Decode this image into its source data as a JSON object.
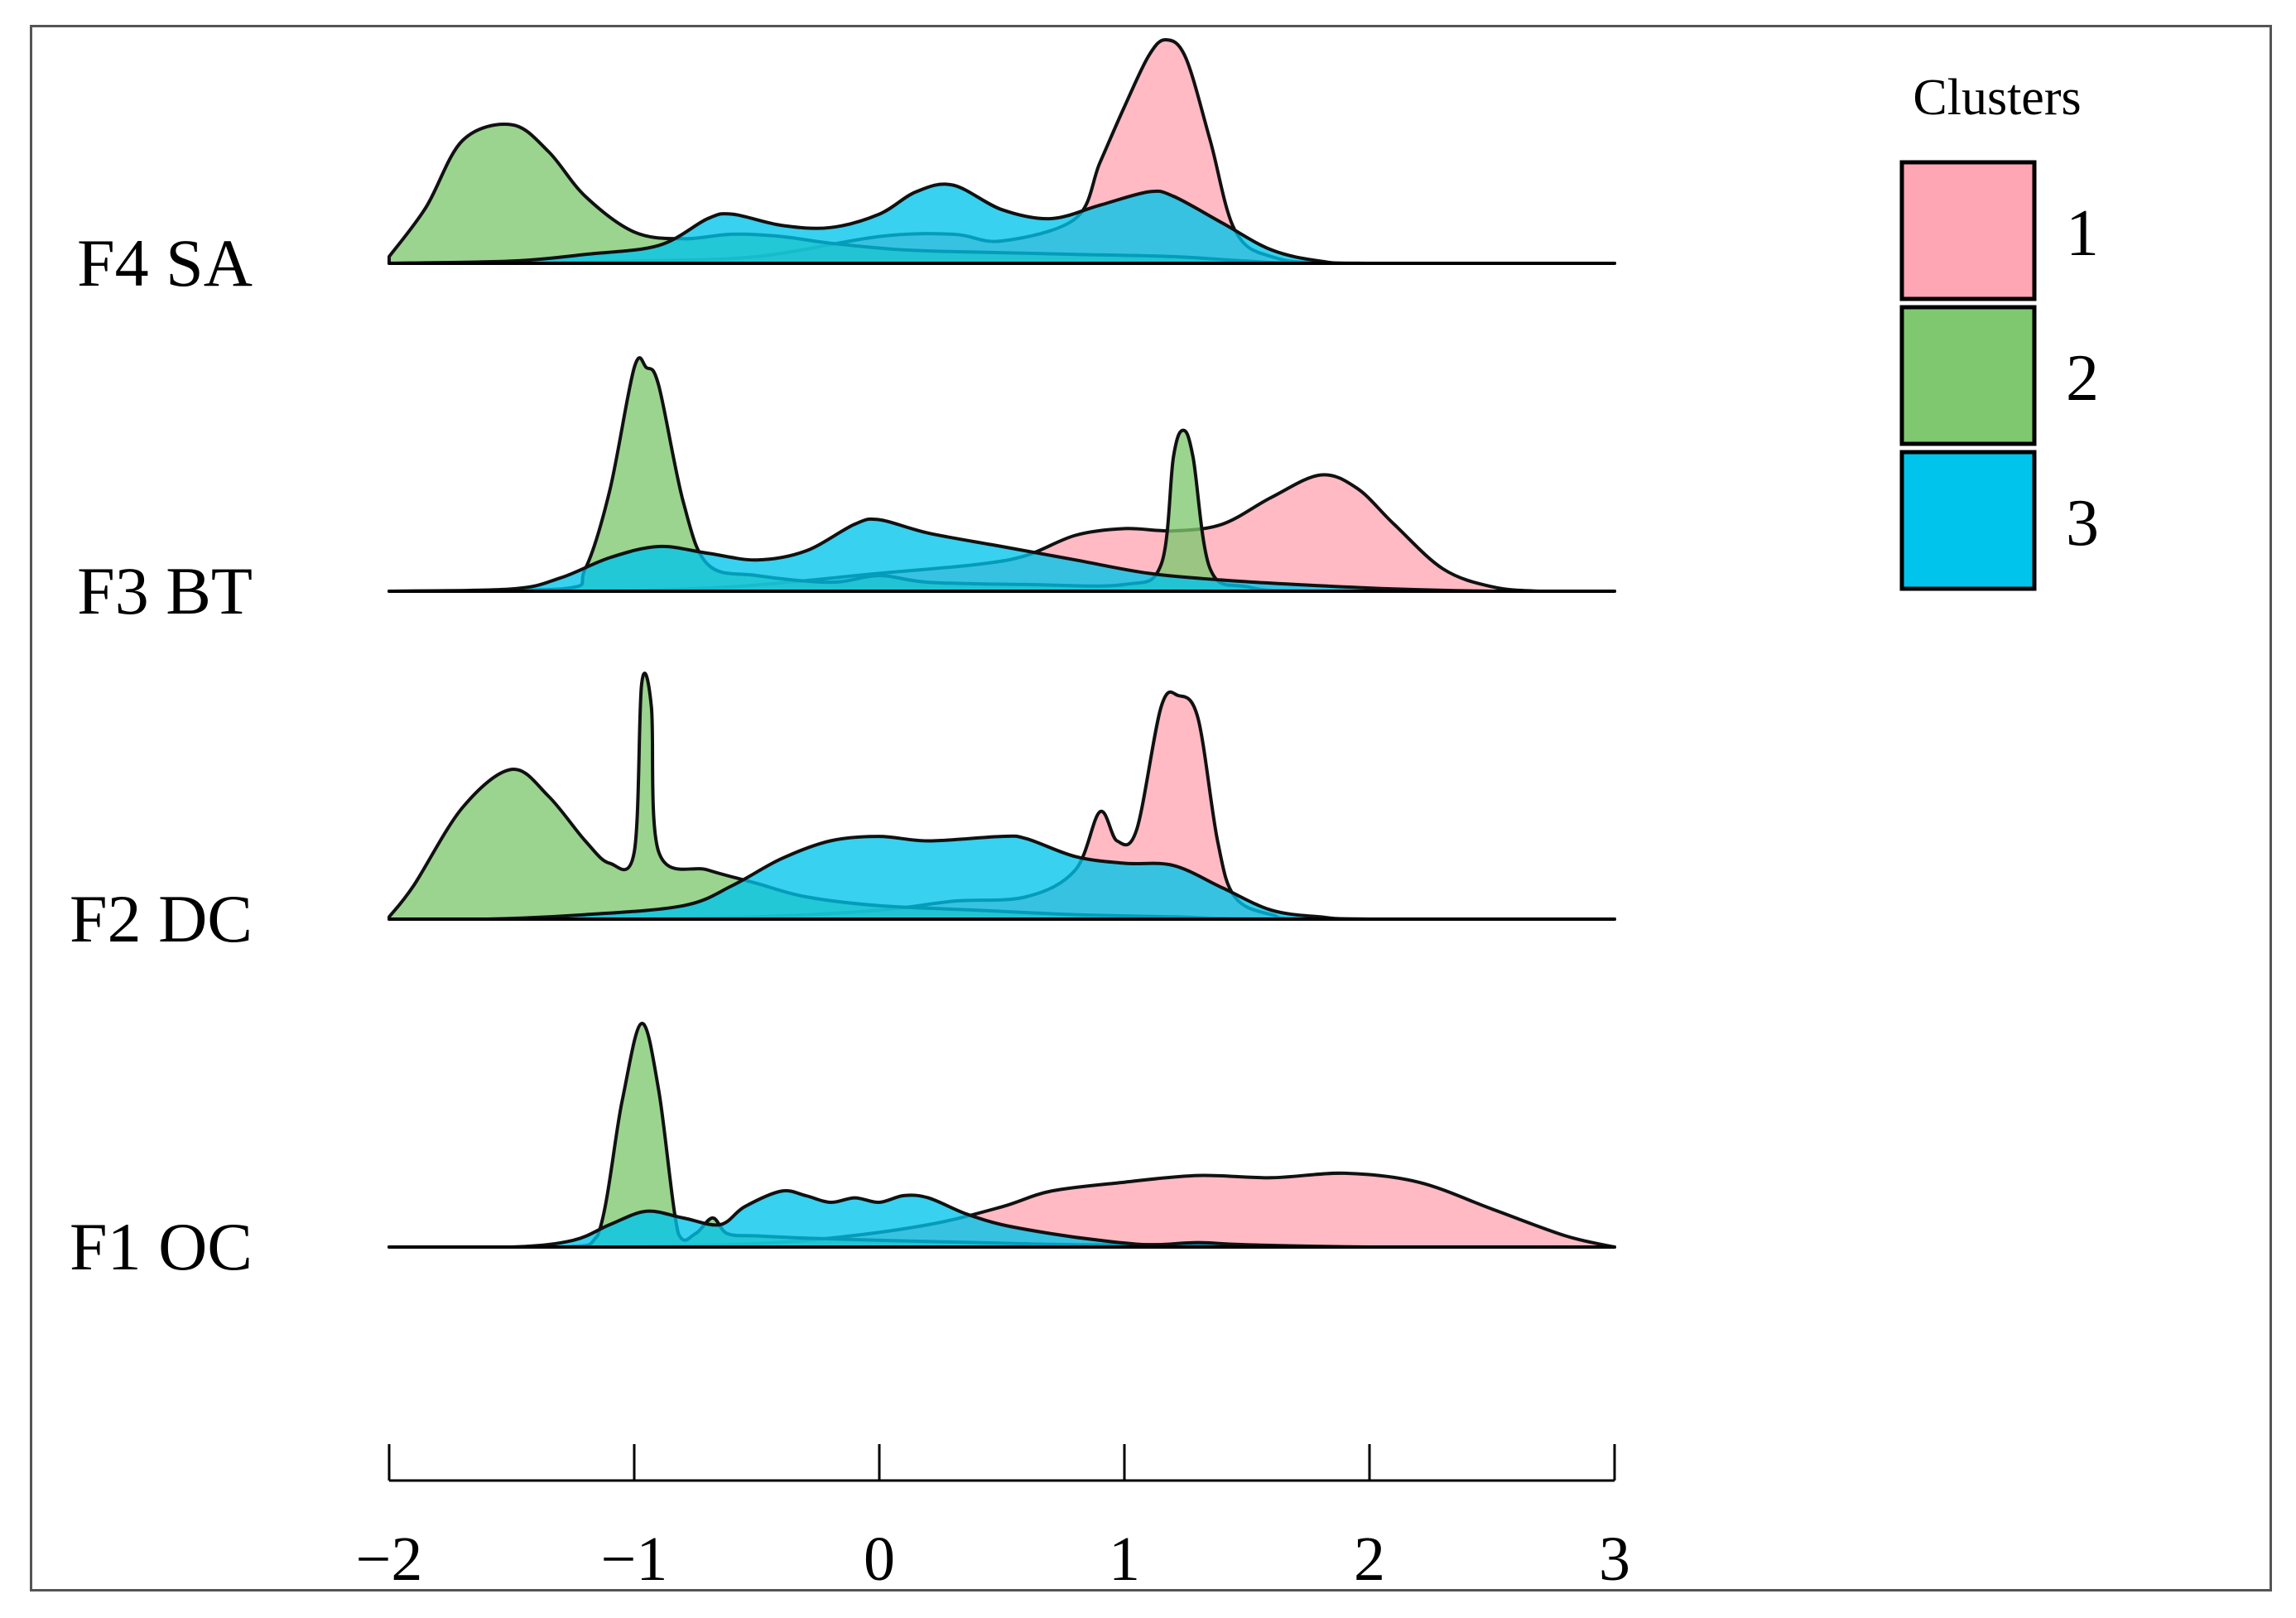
{
  "chart_data": {
    "type": "ridgeline",
    "title": "",
    "xlabel": "",
    "ylabel": "",
    "xlim": [
      -2,
      3
    ],
    "x_ticks": [
      -2,
      -1,
      0,
      1,
      2,
      3
    ],
    "x_tick_labels": [
      "−2",
      "−1",
      "0",
      "1",
      "2",
      "3"
    ],
    "rows": [
      "F4 SA",
      "F3 BT",
      "F2 DC",
      "F1 OC"
    ],
    "legend": {
      "title": "Clusters",
      "position": "top-right",
      "items": [
        {
          "label": "1",
          "color": "#ffa6b4"
        },
        {
          "label": "2",
          "color": "#7fc86f"
        },
        {
          "label": "3",
          "color": "#00c4eb"
        }
      ]
    },
    "series": [
      {
        "row": "F4 SA",
        "cluster": "1",
        "color": "#ffa6b4",
        "points": [
          [
            -2,
            0
          ],
          [
            -1.5,
            0
          ],
          [
            -1,
            0.01
          ],
          [
            -0.5,
            0.03
          ],
          [
            0,
            0.12
          ],
          [
            0.3,
            0.13
          ],
          [
            0.5,
            0.1
          ],
          [
            0.8,
            0.2
          ],
          [
            0.9,
            0.45
          ],
          [
            1.0,
            0.7
          ],
          [
            1.1,
            0.93
          ],
          [
            1.17,
            1.0
          ],
          [
            1.25,
            0.92
          ],
          [
            1.35,
            0.55
          ],
          [
            1.45,
            0.15
          ],
          [
            1.6,
            0.03
          ],
          [
            1.9,
            0
          ],
          [
            3,
            0
          ]
        ]
      },
      {
        "row": "F4 SA",
        "cluster": "2",
        "color": "#7fc86f",
        "points": [
          [
            -2,
            0.03
          ],
          [
            -1.85,
            0.25
          ],
          [
            -1.7,
            0.55
          ],
          [
            -1.5,
            0.62
          ],
          [
            -1.35,
            0.5
          ],
          [
            -1.2,
            0.3
          ],
          [
            -1.0,
            0.14
          ],
          [
            -0.8,
            0.11
          ],
          [
            -0.6,
            0.13
          ],
          [
            -0.4,
            0.12
          ],
          [
            -0.2,
            0.09
          ],
          [
            0.1,
            0.06
          ],
          [
            0.4,
            0.05
          ],
          [
            0.8,
            0.04
          ],
          [
            1.2,
            0.03
          ],
          [
            1.5,
            0.01
          ],
          [
            1.8,
            0
          ],
          [
            3,
            0
          ]
        ]
      },
      {
        "row": "F4 SA",
        "cluster": "3",
        "color": "#00c4eb",
        "points": [
          [
            -2,
            0
          ],
          [
            -1.5,
            0.01
          ],
          [
            -1.2,
            0.04
          ],
          [
            -0.9,
            0.08
          ],
          [
            -0.7,
            0.2
          ],
          [
            -0.6,
            0.22
          ],
          [
            -0.4,
            0.17
          ],
          [
            -0.2,
            0.16
          ],
          [
            0,
            0.22
          ],
          [
            0.15,
            0.32
          ],
          [
            0.3,
            0.35
          ],
          [
            0.5,
            0.24
          ],
          [
            0.7,
            0.2
          ],
          [
            0.9,
            0.26
          ],
          [
            1.1,
            0.32
          ],
          [
            1.2,
            0.3
          ],
          [
            1.4,
            0.18
          ],
          [
            1.6,
            0.06
          ],
          [
            1.8,
            0.01
          ],
          [
            2,
            0
          ],
          [
            3,
            0
          ]
        ]
      },
      {
        "row": "F3 BT",
        "cluster": "1",
        "color": "#ffa6b4",
        "points": [
          [
            -2,
            0
          ],
          [
            -1.2,
            0
          ],
          [
            -0.6,
            0.02
          ],
          [
            0,
            0.08
          ],
          [
            0.4,
            0.12
          ],
          [
            0.6,
            0.16
          ],
          [
            0.8,
            0.25
          ],
          [
            1.0,
            0.28
          ],
          [
            1.2,
            0.27
          ],
          [
            1.4,
            0.3
          ],
          [
            1.6,
            0.42
          ],
          [
            1.8,
            0.52
          ],
          [
            1.95,
            0.46
          ],
          [
            2.1,
            0.3
          ],
          [
            2.3,
            0.1
          ],
          [
            2.5,
            0.02
          ],
          [
            2.7,
            0
          ],
          [
            3,
            0
          ]
        ]
      },
      {
        "row": "F3 BT",
        "cluster": "2",
        "color": "#7fc86f",
        "points": [
          [
            -2,
            0
          ],
          [
            -1.3,
            0.01
          ],
          [
            -1.2,
            0.1
          ],
          [
            -1.1,
            0.45
          ],
          [
            -1.0,
            1.0
          ],
          [
            -0.95,
            1.0
          ],
          [
            -0.9,
            0.92
          ],
          [
            -0.8,
            0.4
          ],
          [
            -0.7,
            0.12
          ],
          [
            -0.5,
            0.07
          ],
          [
            -0.2,
            0.04
          ],
          [
            0,
            0.07
          ],
          [
            0.2,
            0.04
          ],
          [
            0.6,
            0.03
          ],
          [
            1.0,
            0.03
          ],
          [
            1.15,
            0.12
          ],
          [
            1.2,
            0.6
          ],
          [
            1.24,
            0.72
          ],
          [
            1.28,
            0.6
          ],
          [
            1.35,
            0.1
          ],
          [
            1.5,
            0.02
          ],
          [
            1.8,
            0
          ],
          [
            3,
            0
          ]
        ]
      },
      {
        "row": "F3 BT",
        "cluster": "3",
        "color": "#00c4eb",
        "points": [
          [
            -2,
            0
          ],
          [
            -1.5,
            0.01
          ],
          [
            -1.3,
            0.06
          ],
          [
            -1.1,
            0.15
          ],
          [
            -0.9,
            0.2
          ],
          [
            -0.7,
            0.17
          ],
          [
            -0.5,
            0.14
          ],
          [
            -0.3,
            0.18
          ],
          [
            -0.1,
            0.3
          ],
          [
            0,
            0.32
          ],
          [
            0.2,
            0.26
          ],
          [
            0.5,
            0.2
          ],
          [
            0.8,
            0.14
          ],
          [
            1.1,
            0.08
          ],
          [
            1.4,
            0.05
          ],
          [
            1.7,
            0.03
          ],
          [
            2.1,
            0.01
          ],
          [
            2.5,
            0
          ],
          [
            3,
            0
          ]
        ]
      },
      {
        "row": "F2 DC",
        "cluster": "1",
        "color": "#ffa6b4",
        "points": [
          [
            -2,
            0
          ],
          [
            -1.2,
            0
          ],
          [
            -0.5,
            0.01
          ],
          [
            0,
            0.04
          ],
          [
            0.3,
            0.08
          ],
          [
            0.6,
            0.1
          ],
          [
            0.8,
            0.22
          ],
          [
            0.9,
            0.48
          ],
          [
            0.97,
            0.35
          ],
          [
            1.05,
            0.4
          ],
          [
            1.15,
            0.95
          ],
          [
            1.22,
            1.0
          ],
          [
            1.3,
            0.9
          ],
          [
            1.38,
            0.35
          ],
          [
            1.45,
            0.1
          ],
          [
            1.6,
            0.02
          ],
          [
            1.8,
            0
          ],
          [
            3,
            0
          ]
        ]
      },
      {
        "row": "F2 DC",
        "cluster": "2",
        "color": "#7fc86f",
        "points": [
          [
            -2,
            0.01
          ],
          [
            -1.9,
            0.15
          ],
          [
            -1.7,
            0.5
          ],
          [
            -1.5,
            0.67
          ],
          [
            -1.35,
            0.55
          ],
          [
            -1.2,
            0.35
          ],
          [
            -1.1,
            0.25
          ],
          [
            -1.0,
            0.3
          ],
          [
            -0.97,
            1.05
          ],
          [
            -0.93,
            0.95
          ],
          [
            -0.9,
            0.3
          ],
          [
            -0.7,
            0.22
          ],
          [
            -0.5,
            0.16
          ],
          [
            -0.3,
            0.1
          ],
          [
            0,
            0.06
          ],
          [
            0.4,
            0.04
          ],
          [
            0.8,
            0.02
          ],
          [
            1.2,
            0.01
          ],
          [
            1.6,
            0
          ],
          [
            3,
            0
          ]
        ]
      },
      {
        "row": "F2 DC",
        "cluster": "3",
        "color": "#00c4eb",
        "points": [
          [
            -2,
            0
          ],
          [
            -1.6,
            0
          ],
          [
            -1.2,
            0.02
          ],
          [
            -0.8,
            0.06
          ],
          [
            -0.6,
            0.15
          ],
          [
            -0.4,
            0.27
          ],
          [
            -0.2,
            0.35
          ],
          [
            0,
            0.37
          ],
          [
            0.2,
            0.35
          ],
          [
            0.5,
            0.37
          ],
          [
            0.6,
            0.36
          ],
          [
            0.8,
            0.28
          ],
          [
            1.0,
            0.25
          ],
          [
            1.2,
            0.24
          ],
          [
            1.4,
            0.14
          ],
          [
            1.6,
            0.04
          ],
          [
            1.8,
            0.01
          ],
          [
            2,
            0
          ],
          [
            3,
            0
          ]
        ]
      },
      {
        "row": "F1 OC",
        "cluster": "1",
        "color": "#ffa6b4",
        "points": [
          [
            -2,
            0
          ],
          [
            -1.2,
            0
          ],
          [
            -0.6,
            0.01
          ],
          [
            -0.2,
            0.04
          ],
          [
            0.2,
            0.1
          ],
          [
            0.5,
            0.18
          ],
          [
            0.7,
            0.25
          ],
          [
            1.0,
            0.29
          ],
          [
            1.3,
            0.32
          ],
          [
            1.6,
            0.31
          ],
          [
            1.9,
            0.33
          ],
          [
            2.2,
            0.29
          ],
          [
            2.5,
            0.17
          ],
          [
            2.8,
            0.05
          ],
          [
            3.0,
            0
          ]
        ]
      },
      {
        "row": "F1 OC",
        "cluster": "2",
        "color": "#7fc86f",
        "points": [
          [
            -2,
            0
          ],
          [
            -1.3,
            0
          ],
          [
            -1.15,
            0.05
          ],
          [
            -1.05,
            0.65
          ],
          [
            -0.97,
            1.0
          ],
          [
            -0.9,
            0.7
          ],
          [
            -0.82,
            0.06
          ],
          [
            -0.75,
            0.06
          ],
          [
            -0.68,
            0.13
          ],
          [
            -0.62,
            0.06
          ],
          [
            -0.5,
            0.05
          ],
          [
            -0.3,
            0.04
          ],
          [
            0,
            0.03
          ],
          [
            0.4,
            0.02
          ],
          [
            0.8,
            0.01
          ],
          [
            1.2,
            0.01
          ],
          [
            1.6,
            0
          ],
          [
            3,
            0
          ]
        ]
      },
      {
        "row": "F1 OC",
        "cluster": "3",
        "color": "#00c4eb",
        "points": [
          [
            -2,
            0
          ],
          [
            -1.5,
            0
          ],
          [
            -1.25,
            0.03
          ],
          [
            -1.1,
            0.1
          ],
          [
            -0.95,
            0.16
          ],
          [
            -0.8,
            0.13
          ],
          [
            -0.65,
            0.1
          ],
          [
            -0.55,
            0.18
          ],
          [
            -0.4,
            0.25
          ],
          [
            -0.3,
            0.23
          ],
          [
            -0.2,
            0.2
          ],
          [
            -0.1,
            0.22
          ],
          [
            0,
            0.2
          ],
          [
            0.1,
            0.23
          ],
          [
            0.2,
            0.22
          ],
          [
            0.35,
            0.15
          ],
          [
            0.5,
            0.1
          ],
          [
            0.7,
            0.06
          ],
          [
            0.9,
            0.03
          ],
          [
            1.1,
            0.01
          ],
          [
            1.3,
            0.02
          ],
          [
            1.5,
            0.01
          ],
          [
            2,
            0
          ],
          [
            3,
            0
          ]
        ]
      }
    ]
  }
}
